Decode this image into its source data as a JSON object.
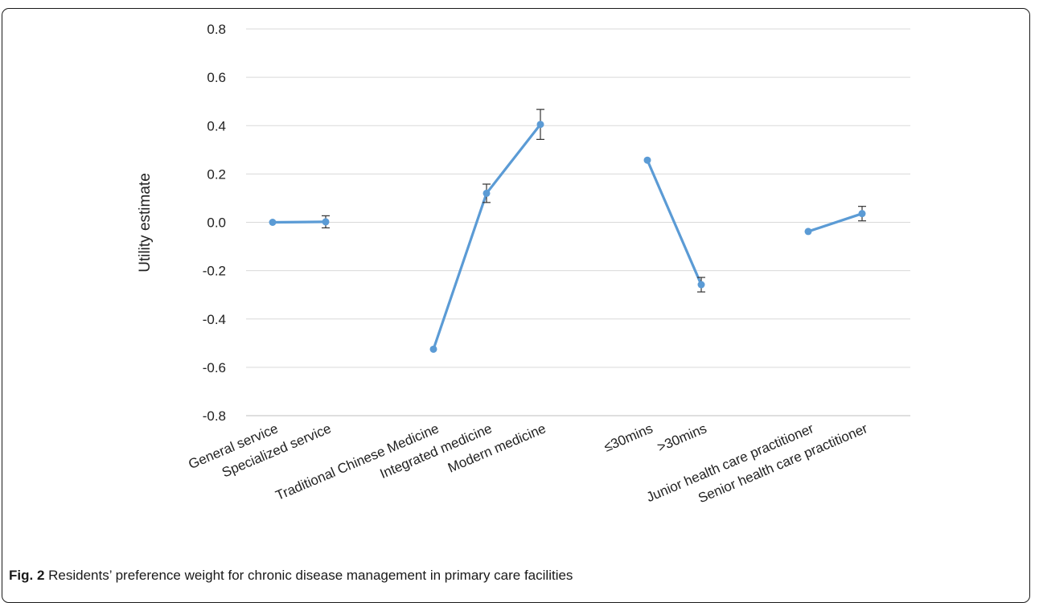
{
  "caption": {
    "label": "Fig. 2",
    "text": "Residents’ preference weight for chronic disease management in primary care facilities"
  },
  "chart_data": {
    "type": "line",
    "title": "",
    "xlabel": "",
    "ylabel": "Utility estimate",
    "ylim": [
      -0.8,
      0.8
    ],
    "yticks": [
      0.8,
      0.6,
      0.4,
      0.2,
      0.0,
      -0.2,
      -0.4,
      -0.6,
      -0.8
    ],
    "ytick_labels": [
      "0.8",
      "0.6",
      "0.4",
      "0.2",
      "0.0",
      "-0.2",
      "-0.4",
      "-0.6",
      "-0.8"
    ],
    "grid": "horizontal",
    "series_color": "#5b9bd5",
    "groups": [
      {
        "points": [
          {
            "label": "General service",
            "value": 0.0,
            "error": null
          },
          {
            "label": "Specialized service",
            "value": 0.002,
            "error": 0.025
          }
        ]
      },
      {
        "points": [
          {
            "label": "Traditional Chinese Medicine",
            "value": -0.525,
            "error": null
          },
          {
            "label": "Integrated medicine",
            "value": 0.12,
            "error": 0.038
          },
          {
            "label": "Modern medicine",
            "value": 0.405,
            "error": 0.062
          }
        ]
      },
      {
        "points": [
          {
            "label": "≤30mins",
            "value": 0.257,
            "error": null
          },
          {
            "label": ">30mins",
            "value": -0.258,
            "error": 0.03
          }
        ]
      },
      {
        "points": [
          {
            "label": "Junior health care practitioner",
            "value": -0.038,
            "error": null
          },
          {
            "label": "Senior health care practitioner",
            "value": 0.036,
            "error": 0.03
          }
        ]
      }
    ]
  }
}
